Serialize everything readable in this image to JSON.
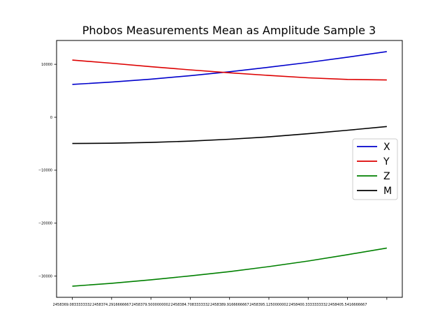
{
  "chart_data": {
    "type": "line",
    "title": "Phobos Measurements Mean as Amplitude Sample 3",
    "xlabel": "",
    "ylabel": "",
    "x": [
      2458369.083333333,
      2458374.2916666665,
      2458379.5,
      2458384.708333333,
      2458389.9166666665,
      2458395.125,
      2458400.333333333,
      2458405.5416666665,
      2458410.75
    ],
    "xticks": [
      2458369.083333333,
      2458374.2916666665,
      2458379.5,
      2458384.708333333,
      2458389.9166666665,
      2458395.125,
      2458400.333333333,
      2458405.5416666665,
      2458410.75
    ],
    "xtick_labels": [
      "2458369.0833333332",
      "2458374.2916666667",
      "2458379.5000000002",
      "2458384.7083333332",
      "2458389.9166666667",
      "2458395.1250000002",
      "2458400.3333333332",
      "2458405.5416666667",
      ""
    ],
    "yticks": [
      10000,
      0,
      -10000,
      -20000,
      -30000
    ],
    "ytick_labels": [
      "10000",
      "0",
      "−10000",
      "−20000",
      "−30000"
    ],
    "xlim": [
      2458367.0,
      2458412.8
    ],
    "ylim": [
      -34000,
      14500
    ],
    "grid": false,
    "legend_position": "center-right",
    "series": [
      {
        "name": "X",
        "color": "#0000cc",
        "values": [
          6200,
          6650,
          7200,
          7850,
          8600,
          9450,
          10350,
          11350,
          12400
        ]
      },
      {
        "name": "Y",
        "color": "#dd0000",
        "values": [
          10800,
          10200,
          9550,
          8950,
          8400,
          7900,
          7450,
          7150,
          7050
        ]
      },
      {
        "name": "Z",
        "color": "#008000",
        "values": [
          -31900,
          -31350,
          -30700,
          -29950,
          -29150,
          -28200,
          -27150,
          -25950,
          -24700
        ]
      },
      {
        "name": "M",
        "color": "#000000",
        "values": [
          -4950,
          -4900,
          -4750,
          -4500,
          -4150,
          -3700,
          -3100,
          -2450,
          -1750
        ]
      }
    ]
  }
}
